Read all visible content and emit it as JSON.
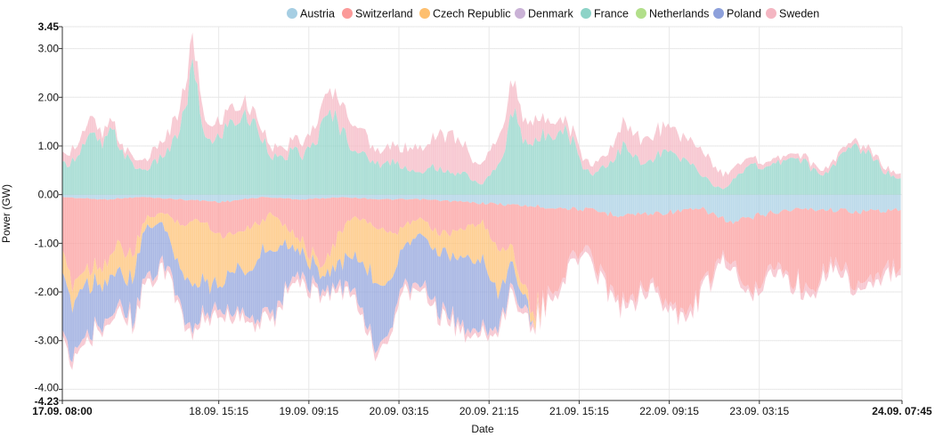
{
  "chart_data": {
    "type": "area",
    "stacked": true,
    "xlabel": "Date",
    "ylabel": "Power (GW)",
    "ylim": [
      -4.23,
      3.45
    ],
    "y_ticks": [
      "3.45",
      "3.00",
      "2.00",
      "1.00",
      "0.00",
      "-1.00",
      "-2.00",
      "-3.00",
      "-4.00",
      "-4.23"
    ],
    "y_tick_values": [
      3.45,
      3.0,
      2.0,
      1.0,
      0.0,
      -1.0,
      -2.0,
      -3.0,
      -4.0,
      -4.23
    ],
    "x_start": "17.09. 08:00",
    "x_end": "24.09. 07:45",
    "x_ticks": [
      "17.09. 08:00",
      "18.09. 15:15",
      "19.09. 09:15",
      "20.09. 03:15",
      "20.09. 21:15",
      "21.09. 15:15",
      "22.09. 09:15",
      "23.09. 03:15",
      "24.09. 07:45"
    ],
    "x_tick_hours": [
      0,
      31.25,
      49.25,
      67.25,
      85.25,
      103.25,
      121.25,
      139.25,
      167.75
    ],
    "grid": true,
    "legend_position": "top-center",
    "series": [
      {
        "name": "Austria",
        "color": "#a6cee3",
        "direction": "negative",
        "points": [
          [
            0,
            -0.05
          ],
          [
            8,
            -0.1
          ],
          [
            16,
            -0.05
          ],
          [
            24,
            -0.1
          ],
          [
            32,
            -0.15
          ],
          [
            40,
            -0.05
          ],
          [
            48,
            -0.1
          ],
          [
            56,
            -0.05
          ],
          [
            64,
            -0.1
          ],
          [
            72,
            -0.1
          ],
          [
            80,
            -0.15
          ],
          [
            88,
            -0.2
          ],
          [
            96,
            -0.25
          ],
          [
            104,
            -0.3
          ],
          [
            110,
            -0.4
          ],
          [
            116,
            -0.4
          ],
          [
            122,
            -0.35
          ],
          [
            128,
            -0.3
          ],
          [
            134,
            -0.6
          ],
          [
            140,
            -0.4
          ],
          [
            146,
            -0.3
          ],
          [
            152,
            -0.3
          ],
          [
            160,
            -0.35
          ],
          [
            167.75,
            -0.3
          ]
        ]
      },
      {
        "name": "Switzerland",
        "color": "#fb9a99",
        "direction": "negative",
        "points": [
          [
            0,
            -1.3
          ],
          [
            2,
            -1.7
          ],
          [
            5,
            -1.4
          ],
          [
            8,
            -1.3
          ],
          [
            11,
            -1.0
          ],
          [
            14,
            -1.2
          ],
          [
            17,
            -0.4
          ],
          [
            20,
            -0.3
          ],
          [
            24,
            -0.5
          ],
          [
            28,
            -0.4
          ],
          [
            32,
            -0.7
          ],
          [
            36,
            -0.6
          ],
          [
            40,
            -0.5
          ],
          [
            42,
            -0.3
          ],
          [
            45,
            -0.6
          ],
          [
            48,
            -0.9
          ],
          [
            51,
            -1.3
          ],
          [
            54,
            -1.0
          ],
          [
            57,
            -0.5
          ],
          [
            60,
            -0.4
          ],
          [
            63,
            -0.6
          ],
          [
            66,
            -0.8
          ],
          [
            69,
            -0.5
          ],
          [
            72,
            -0.4
          ],
          [
            75,
            -0.7
          ],
          [
            78,
            -0.6
          ],
          [
            81,
            -0.5
          ],
          [
            84,
            -0.4
          ],
          [
            87,
            -0.9
          ],
          [
            90,
            -0.9
          ],
          [
            92,
            -1.5
          ],
          [
            94,
            -2.3
          ],
          [
            96,
            -2.0
          ],
          [
            98,
            -1.8
          ],
          [
            100,
            -1.3
          ],
          [
            102,
            -1.0
          ],
          [
            104,
            -0.8
          ],
          [
            106,
            -1.0
          ],
          [
            108,
            -1.3
          ],
          [
            110,
            -1.5
          ],
          [
            112,
            -1.8
          ],
          [
            114,
            -1.6
          ],
          [
            116,
            -1.4
          ],
          [
            118,
            -1.5
          ],
          [
            120,
            -1.7
          ],
          [
            122,
            -1.9
          ],
          [
            124,
            -2.3
          ],
          [
            126,
            -1.9
          ],
          [
            128,
            -1.6
          ],
          [
            130,
            -1.2
          ],
          [
            132,
            -0.8
          ],
          [
            134,
            -0.8
          ],
          [
            136,
            -1.2
          ],
          [
            138,
            -1.5
          ],
          [
            140,
            -1.3
          ],
          [
            142,
            -1.1
          ],
          [
            144,
            -1.2
          ],
          [
            146,
            -1.4
          ],
          [
            148,
            -1.6
          ],
          [
            150,
            -1.5
          ],
          [
            152,
            -1.2
          ],
          [
            154,
            -1.0
          ],
          [
            156,
            -1.2
          ],
          [
            158,
            -1.4
          ],
          [
            160,
            -1.5
          ],
          [
            162,
            -1.4
          ],
          [
            164,
            -1.3
          ],
          [
            167.75,
            -1.1
          ]
        ]
      },
      {
        "name": "Czech Republic",
        "color": "#fdbf6f",
        "direction": "negative",
        "points": [
          [
            0,
            -0.5
          ],
          [
            4,
            -0.3
          ],
          [
            8,
            -0.4
          ],
          [
            12,
            -0.6
          ],
          [
            14,
            -0.5
          ],
          [
            16,
            -0.2
          ],
          [
            20,
            -0.2
          ],
          [
            22,
            -0.7
          ],
          [
            26,
            -1.3
          ],
          [
            30,
            -1.1
          ],
          [
            34,
            -0.7
          ],
          [
            38,
            -0.9
          ],
          [
            40,
            -0.6
          ],
          [
            42,
            -0.8
          ],
          [
            44,
            -0.4
          ],
          [
            48,
            -0.2
          ],
          [
            52,
            -0.2
          ],
          [
            55,
            -0.6
          ],
          [
            58,
            -0.8
          ],
          [
            61,
            -1.0
          ],
          [
            64,
            -1.1
          ],
          [
            66,
            -0.8
          ],
          [
            68,
            -0.4
          ],
          [
            72,
            -0.3
          ],
          [
            76,
            -0.4
          ],
          [
            80,
            -0.6
          ],
          [
            84,
            -0.8
          ],
          [
            87,
            -0.9
          ],
          [
            90,
            -0.3
          ],
          [
            92,
            -0.2
          ],
          [
            94,
            -0.2
          ],
          [
            96,
            -0.0
          ],
          [
            167.75,
            0
          ]
        ]
      },
      {
        "name": "Denmark",
        "color": "#cab2d6",
        "direction": "negative",
        "points": [
          [
            0,
            0
          ],
          [
            167.75,
            0
          ]
        ]
      },
      {
        "name": "France",
        "color": "#8dd3c7",
        "direction": "positive",
        "points": [
          [
            0,
            0.6
          ],
          [
            2,
            0.7
          ],
          [
            4,
            1.0
          ],
          [
            6,
            1.2
          ],
          [
            8,
            1.0
          ],
          [
            10,
            1.3
          ],
          [
            12,
            0.9
          ],
          [
            14,
            0.6
          ],
          [
            16,
            0.5
          ],
          [
            18,
            0.6
          ],
          [
            20,
            0.8
          ],
          [
            22,
            1.0
          ],
          [
            24,
            1.5
          ],
          [
            26,
            2.6
          ],
          [
            28,
            1.4
          ],
          [
            30,
            1.0
          ],
          [
            32,
            1.3
          ],
          [
            34,
            1.5
          ],
          [
            36,
            1.6
          ],
          [
            38,
            1.5
          ],
          [
            40,
            1.2
          ],
          [
            42,
            0.8
          ],
          [
            44,
            0.7
          ],
          [
            46,
            0.9
          ],
          [
            48,
            0.8
          ],
          [
            50,
            1.0
          ],
          [
            52,
            1.4
          ],
          [
            54,
            1.7
          ],
          [
            56,
            1.3
          ],
          [
            58,
            1.0
          ],
          [
            60,
            0.8
          ],
          [
            62,
            0.7
          ],
          [
            64,
            0.6
          ],
          [
            66,
            0.7
          ],
          [
            68,
            0.6
          ],
          [
            70,
            0.5
          ],
          [
            72,
            0.4
          ],
          [
            74,
            0.6
          ],
          [
            76,
            0.5
          ],
          [
            78,
            0.4
          ],
          [
            80,
            0.5
          ],
          [
            82,
            0.3
          ],
          [
            84,
            0.2
          ],
          [
            86,
            0.5
          ],
          [
            88,
            0.7
          ],
          [
            90,
            1.8
          ],
          [
            92,
            1.2
          ],
          [
            94,
            1.0
          ],
          [
            96,
            1.2
          ],
          [
            98,
            1.3
          ],
          [
            100,
            1.4
          ],
          [
            102,
            1.1
          ],
          [
            104,
            0.6
          ],
          [
            106,
            0.4
          ],
          [
            108,
            0.6
          ],
          [
            110,
            0.7
          ],
          [
            112,
            1.0
          ],
          [
            114,
            0.8
          ],
          [
            116,
            0.6
          ],
          [
            118,
            0.7
          ],
          [
            120,
            0.9
          ],
          [
            122,
            0.8
          ],
          [
            124,
            0.7
          ],
          [
            126,
            0.6
          ],
          [
            128,
            0.4
          ],
          [
            130,
            0.2
          ],
          [
            132,
            0.1
          ],
          [
            134,
            0.3
          ],
          [
            136,
            0.5
          ],
          [
            138,
            0.7
          ],
          [
            140,
            0.5
          ],
          [
            142,
            0.6
          ],
          [
            144,
            0.7
          ],
          [
            146,
            0.8
          ],
          [
            148,
            0.7
          ],
          [
            150,
            0.5
          ],
          [
            152,
            0.4
          ],
          [
            154,
            0.6
          ],
          [
            156,
            0.8
          ],
          [
            158,
            1.0
          ],
          [
            160,
            0.9
          ],
          [
            162,
            0.8
          ],
          [
            164,
            0.5
          ],
          [
            166,
            0.4
          ],
          [
            167.75,
            0.3
          ]
        ]
      },
      {
        "name": "Netherlands",
        "color": "#b2df8a",
        "direction": "positive",
        "points": [
          [
            0,
            0
          ],
          [
            167.75,
            0
          ]
        ]
      },
      {
        "name": "Poland",
        "color": "#8da0db",
        "direction": "negative",
        "points": [
          [
            0,
            -1.4
          ],
          [
            3,
            -1.0
          ],
          [
            6,
            -0.9
          ],
          [
            9,
            -0.8
          ],
          [
            12,
            -0.6
          ],
          [
            14,
            -0.8
          ],
          [
            16,
            -0.9
          ],
          [
            18,
            -1.0
          ],
          [
            20,
            -0.8
          ],
          [
            22,
            -0.6
          ],
          [
            24,
            -0.8
          ],
          [
            26,
            -0.9
          ],
          [
            28,
            -0.7
          ],
          [
            30,
            -0.6
          ],
          [
            32,
            -0.5
          ],
          [
            34,
            -0.8
          ],
          [
            36,
            -0.9
          ],
          [
            38,
            -1.0
          ],
          [
            40,
            -1.2
          ],
          [
            42,
            -1.3
          ],
          [
            44,
            -1.1
          ],
          [
            46,
            -0.6
          ],
          [
            48,
            -0.5
          ],
          [
            52,
            -0.3
          ],
          [
            56,
            -0.5
          ],
          [
            58,
            -0.7
          ],
          [
            60,
            -1.1
          ],
          [
            62,
            -1.3
          ],
          [
            64,
            -1.2
          ],
          [
            66,
            -1.0
          ],
          [
            68,
            -0.7
          ],
          [
            70,
            -1.0
          ],
          [
            72,
            -1.1
          ],
          [
            74,
            -0.9
          ],
          [
            76,
            -1.2
          ],
          [
            78,
            -1.3
          ],
          [
            80,
            -1.3
          ],
          [
            82,
            -1.6
          ],
          [
            84,
            -1.4
          ],
          [
            86,
            -0.9
          ],
          [
            88,
            -0.6
          ],
          [
            90,
            -0.5
          ],
          [
            92,
            -0.3
          ],
          [
            94,
            -0.0
          ],
          [
            167.75,
            0
          ]
        ]
      },
      {
        "name": "Sweden",
        "color": "#f4b6c2",
        "direction": "both",
        "points": [
          [
            0,
            0.2
          ],
          [
            6,
            0.3
          ],
          [
            12,
            0.1
          ],
          [
            16,
            0.2
          ],
          [
            20,
            0.3
          ],
          [
            26,
            0.5
          ],
          [
            30,
            0.3
          ],
          [
            34,
            0.3
          ],
          [
            40,
            0.2
          ],
          [
            46,
            0.2
          ],
          [
            50,
            0.3
          ],
          [
            54,
            0.5
          ],
          [
            58,
            0.6
          ],
          [
            62,
            0.3
          ],
          [
            66,
            0.3
          ],
          [
            70,
            0.5
          ],
          [
            74,
            0.6
          ],
          [
            78,
            0.8
          ],
          [
            82,
            0.4
          ],
          [
            86,
            0.5
          ],
          [
            90,
            0.6
          ],
          [
            94,
            0.4
          ],
          [
            98,
            0.3
          ],
          [
            100,
            0.2
          ],
          [
            104,
            0.2
          ],
          [
            108,
            0.2
          ],
          [
            112,
            0.5
          ],
          [
            116,
            0.5
          ],
          [
            120,
            0.5
          ],
          [
            124,
            0.5
          ],
          [
            128,
            0.5
          ],
          [
            132,
            0.3
          ],
          [
            136,
            0.2
          ],
          [
            140,
            0.1
          ],
          [
            146,
            0.1
          ],
          [
            152,
            0.1
          ],
          [
            160,
            0.1
          ],
          [
            167.75,
            0.1
          ]
        ]
      }
    ]
  }
}
